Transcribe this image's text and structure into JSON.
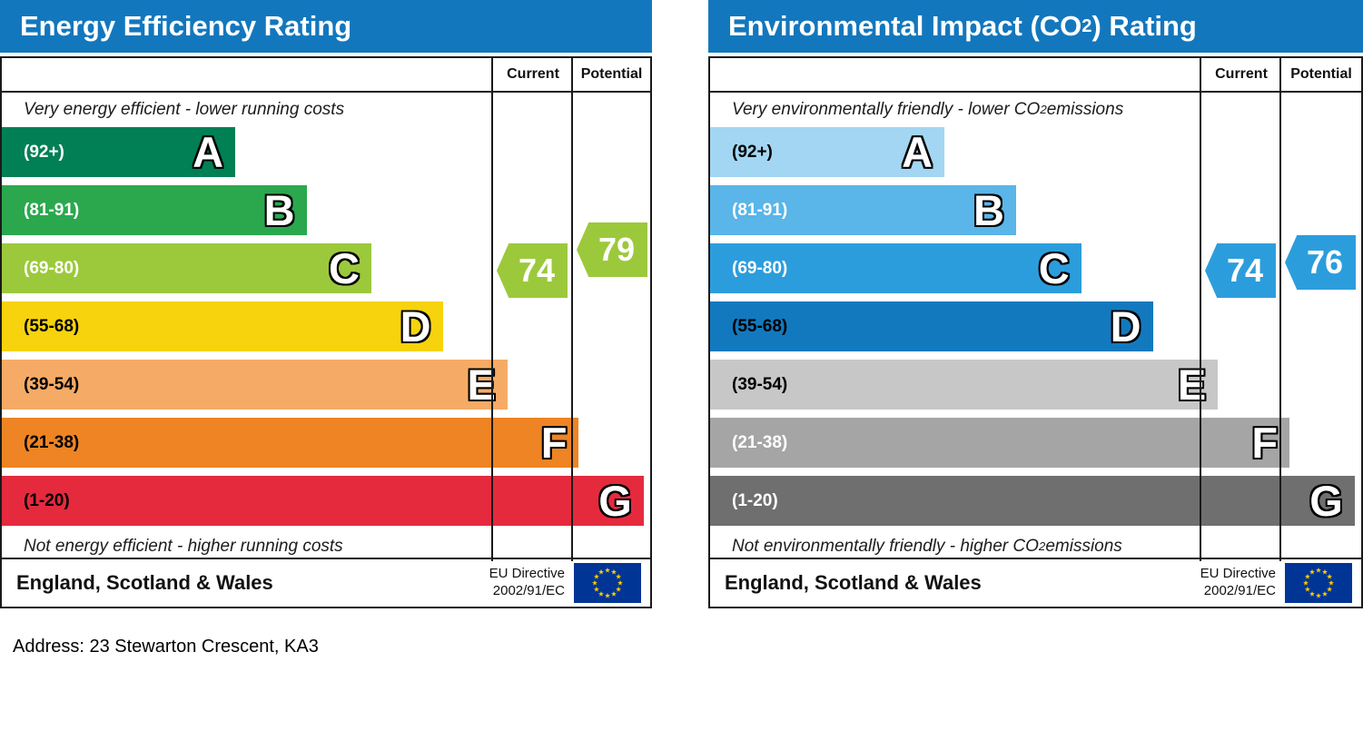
{
  "address_line": "Address: 23 Stewarton Crescent, KA3",
  "chart_data": [
    {
      "type": "bar",
      "title_prefix": "Energy Efficiency Rating",
      "title_sub": "",
      "title_suffix": "",
      "title_bar_color": "#1377bd",
      "header": {
        "current": "Current",
        "potential": "Potential"
      },
      "top_caption_prefix": "Very energy efficient - lower running costs",
      "top_caption_sub": "",
      "top_caption_suffix": "",
      "bottom_caption_prefix": "Not energy efficient - higher running costs",
      "bottom_caption_sub": "",
      "bottom_caption_suffix": "",
      "ylim": [
        1,
        100
      ],
      "bands": [
        {
          "letter": "A",
          "range": "(92+)",
          "range_min": 92,
          "range_max": 100,
          "color": "#008054",
          "text_color": "#ffffff",
          "width_pct": 36
        },
        {
          "letter": "B",
          "range": "(81-91)",
          "range_min": 81,
          "range_max": 91,
          "color": "#2ba84e",
          "text_color": "#ffffff",
          "width_pct": 47
        },
        {
          "letter": "C",
          "range": "(69-80)",
          "range_min": 69,
          "range_max": 80,
          "color": "#9cc93b",
          "text_color": "#ffffff",
          "width_pct": 57
        },
        {
          "letter": "D",
          "range": "(55-68)",
          "range_min": 55,
          "range_max": 68,
          "color": "#f6d30d",
          "text_color": "#000000",
          "width_pct": 68
        },
        {
          "letter": "E",
          "range": "(39-54)",
          "range_min": 39,
          "range_max": 54,
          "color": "#f5ab66",
          "text_color": "#000000",
          "width_pct": 78
        },
        {
          "letter": "F",
          "range": "(21-38)",
          "range_min": 21,
          "range_max": 38,
          "color": "#ee8424",
          "text_color": "#000000",
          "width_pct": 89
        },
        {
          "letter": "G",
          "range": "(1-20)",
          "range_min": 1,
          "range_max": 20,
          "color": "#e52a3d",
          "text_color": "#000000",
          "width_pct": 99
        }
      ],
      "current": {
        "value": 74,
        "color": "#9cc93b"
      },
      "potential": {
        "value": 79,
        "color": "#9cc93b"
      },
      "footer": {
        "region": "England, Scotland & Wales",
        "directive_line1": "EU Directive",
        "directive_line2": "2002/91/EC"
      },
      "eu_flag": {
        "background": "#003595",
        "star_color": "#ffcc00"
      }
    },
    {
      "type": "bar",
      "title_prefix": "Environmental Impact (CO",
      "title_sub": "2",
      "title_suffix": ") Rating",
      "title_bar_color": "#1377bd",
      "header": {
        "current": "Current",
        "potential": "Potential"
      },
      "top_caption_prefix": "Very environmentally friendly - lower CO",
      "top_caption_sub": "2",
      "top_caption_suffix": " emissions",
      "bottom_caption_prefix": "Not environmentally friendly - higher CO",
      "bottom_caption_sub": "2",
      "bottom_caption_suffix": " emissions",
      "ylim": [
        1,
        100
      ],
      "bands": [
        {
          "letter": "A",
          "range": "(92+)",
          "range_min": 92,
          "range_max": 100,
          "color": "#a3d6f2",
          "text_color": "#000000",
          "width_pct": 36
        },
        {
          "letter": "B",
          "range": "(81-91)",
          "range_min": 81,
          "range_max": 91,
          "color": "#5ab5e8",
          "text_color": "#ffffff",
          "width_pct": 47
        },
        {
          "letter": "C",
          "range": "(69-80)",
          "range_min": 69,
          "range_max": 80,
          "color": "#2c9ddc",
          "text_color": "#ffffff",
          "width_pct": 57
        },
        {
          "letter": "D",
          "range": "(55-68)",
          "range_min": 55,
          "range_max": 68,
          "color": "#1379bf",
          "text_color": "#000000",
          "width_pct": 68
        },
        {
          "letter": "E",
          "range": "(39-54)",
          "range_min": 39,
          "range_max": 54,
          "color": "#c7c7c7",
          "text_color": "#000000",
          "width_pct": 78
        },
        {
          "letter": "F",
          "range": "(21-38)",
          "range_min": 21,
          "range_max": 38,
          "color": "#a5a5a5",
          "text_color": "#ffffff",
          "width_pct": 89
        },
        {
          "letter": "G",
          "range": "(1-20)",
          "range_min": 1,
          "range_max": 20,
          "color": "#6f6f6f",
          "text_color": "#ffffff",
          "width_pct": 99
        }
      ],
      "current": {
        "value": 74,
        "color": "#2c9ddc"
      },
      "potential": {
        "value": 76,
        "color": "#2c9ddc"
      },
      "footer": {
        "region": "England, Scotland & Wales",
        "directive_line1": "EU Directive",
        "directive_line2": "2002/91/EC"
      },
      "eu_flag": {
        "background": "#003595",
        "star_color": "#ffcc00"
      }
    }
  ]
}
